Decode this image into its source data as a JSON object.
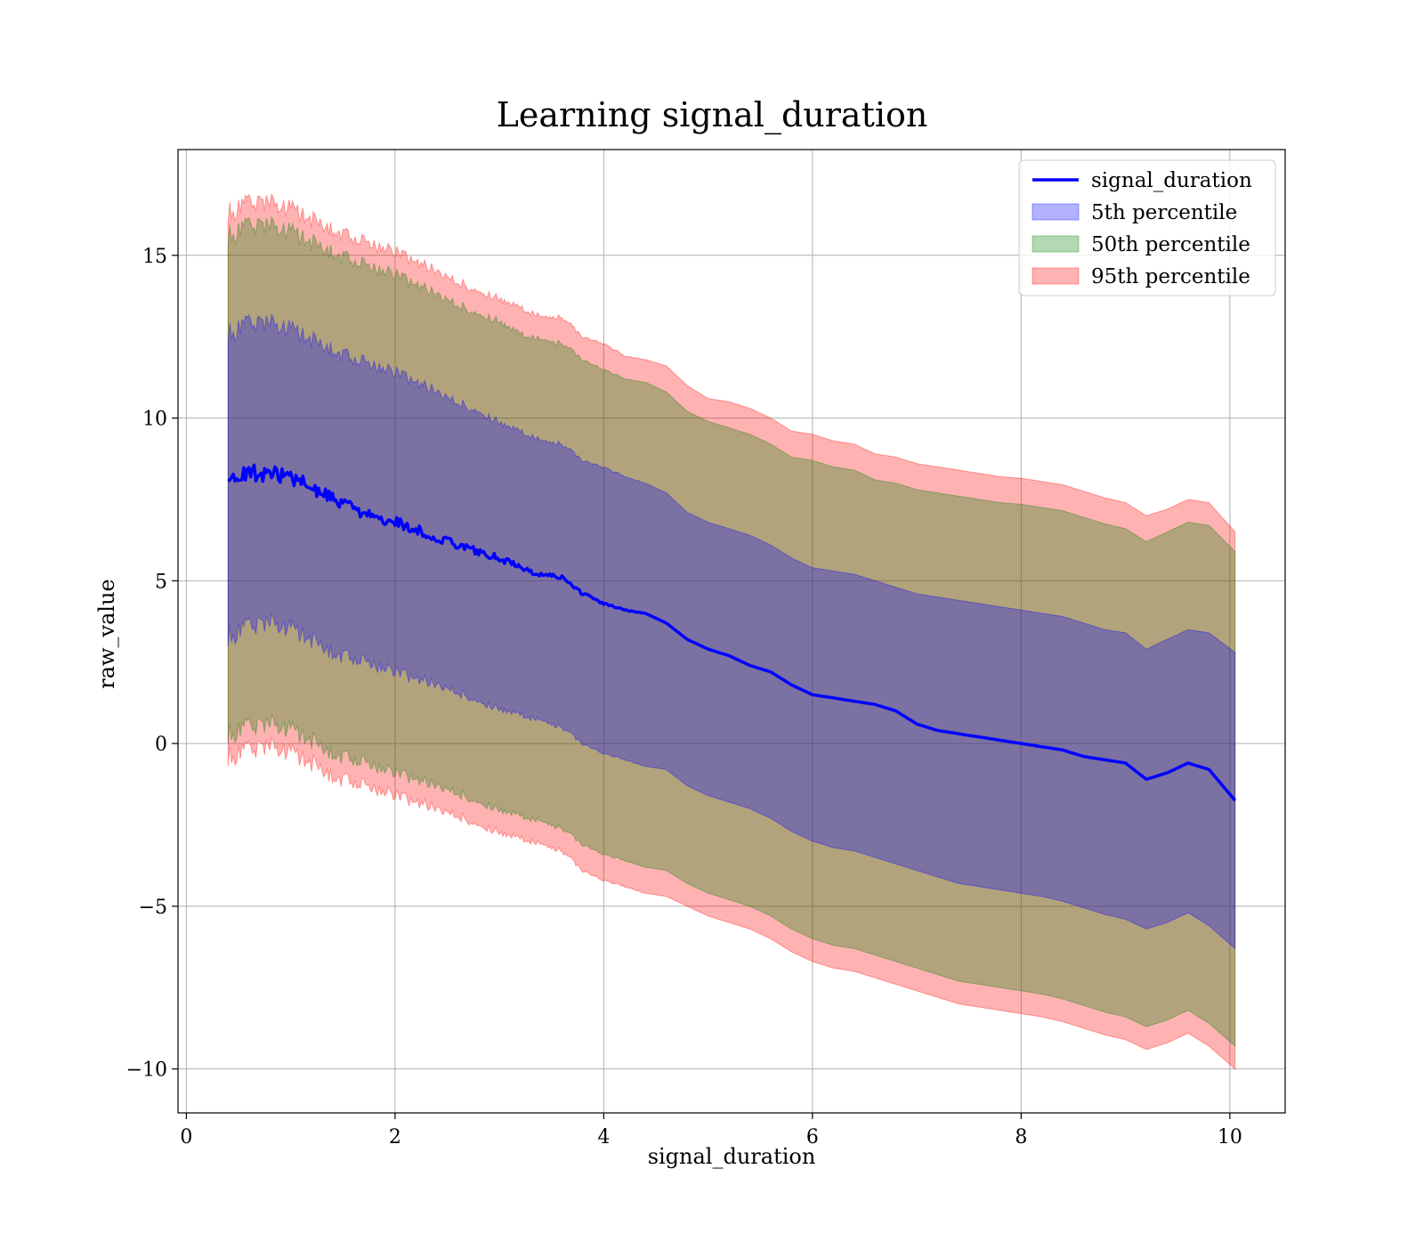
{
  "chart_data": {
    "type": "area",
    "title": "Learning signal_duration",
    "xlabel": "signal_duration",
    "ylabel": "raw_value",
    "xlim": [
      -0.08,
      10.53
    ],
    "ylim": [
      -11.35,
      18.25
    ],
    "xticks": [
      0,
      2,
      4,
      6,
      8,
      10
    ],
    "xtick_labels": [
      "0",
      "2",
      "4",
      "6",
      "8",
      "10"
    ],
    "yticks": [
      -10,
      -5,
      0,
      5,
      10,
      15
    ],
    "ytick_labels": [
      "−10",
      "−5",
      "0",
      "5",
      "10",
      "15"
    ],
    "grid": true,
    "legend_position": "top-right",
    "x": [
      0.4,
      0.6,
      0.8,
      1.0,
      1.2,
      1.4,
      1.6,
      1.8,
      2.0,
      2.2,
      2.4,
      2.6,
      2.8,
      3.0,
      3.2,
      3.4,
      3.6,
      3.8,
      4.0,
      4.2,
      4.4,
      4.6,
      4.8,
      5.0,
      5.2,
      5.4,
      5.6,
      5.8,
      6.0,
      6.2,
      6.4,
      6.6,
      6.8,
      7.0,
      7.2,
      7.4,
      7.6,
      7.8,
      8.0,
      8.2,
      8.4,
      8.6,
      8.8,
      9.0,
      9.2,
      9.4,
      9.6,
      9.8,
      10.05
    ],
    "line": {
      "name": "signal_duration",
      "color": "#0000ff",
      "values": [
        8.0,
        8.3,
        8.3,
        8.2,
        7.9,
        7.5,
        7.2,
        7.0,
        6.8,
        6.6,
        6.3,
        6.1,
        5.9,
        5.7,
        5.4,
        5.2,
        5.1,
        4.6,
        4.3,
        4.1,
        4.0,
        3.7,
        3.2,
        2.9,
        2.7,
        2.4,
        2.2,
        1.8,
        1.5,
        1.4,
        1.3,
        1.2,
        1.0,
        0.6,
        0.4,
        0.3,
        0.2,
        0.1,
        0.0,
        -0.1,
        -0.2,
        -0.4,
        -0.5,
        -0.6,
        -1.1,
        -0.9,
        -0.6,
        -0.8,
        -1.75
      ]
    },
    "bands": [
      {
        "name": "95th percentile",
        "color": "#ff0000",
        "opacity": 0.3,
        "upper": [
          16.3,
          16.6,
          16.6,
          16.4,
          16.1,
          15.8,
          15.5,
          15.3,
          15.1,
          14.8,
          14.5,
          14.2,
          13.9,
          13.7,
          13.4,
          13.1,
          13.1,
          12.5,
          12.3,
          11.9,
          11.8,
          11.6,
          11.0,
          10.6,
          10.5,
          10.3,
          10.0,
          9.6,
          9.5,
          9.3,
          9.2,
          8.9,
          8.8,
          8.6,
          8.5,
          8.4,
          8.3,
          8.2,
          8.15,
          8.05,
          7.95,
          7.75,
          7.55,
          7.4,
          7.0,
          7.2,
          7.5,
          7.4,
          6.5
        ],
        "lower": [
          -0.4,
          -0.2,
          -0.1,
          -0.3,
          -0.6,
          -1.0,
          -1.2,
          -1.4,
          -1.6,
          -1.8,
          -2.0,
          -2.2,
          -2.5,
          -2.7,
          -2.9,
          -3.1,
          -3.3,
          -3.9,
          -4.2,
          -4.4,
          -4.6,
          -4.7,
          -5.0,
          -5.3,
          -5.5,
          -5.7,
          -6.0,
          -6.4,
          -6.7,
          -6.9,
          -7.0,
          -7.2,
          -7.4,
          -7.6,
          -7.8,
          -8.0,
          -8.1,
          -8.2,
          -8.3,
          -8.4,
          -8.55,
          -8.75,
          -8.95,
          -9.1,
          -9.4,
          -9.2,
          -8.9,
          -9.3,
          -10.0
        ]
      },
      {
        "name": "50th percentile",
        "color": "#008000",
        "opacity": 0.3,
        "upper": [
          15.6,
          15.9,
          15.9,
          15.7,
          15.4,
          15.1,
          14.8,
          14.6,
          14.4,
          14.1,
          13.8,
          13.5,
          13.2,
          13.0,
          12.6,
          12.4,
          12.3,
          11.8,
          11.5,
          11.2,
          11.1,
          10.8,
          10.2,
          9.9,
          9.7,
          9.5,
          9.2,
          8.8,
          8.7,
          8.5,
          8.4,
          8.1,
          8.0,
          7.8,
          7.7,
          7.6,
          7.5,
          7.4,
          7.35,
          7.25,
          7.15,
          6.95,
          6.75,
          6.6,
          6.2,
          6.5,
          6.8,
          6.7,
          5.9
        ],
        "lower": [
          0.3,
          0.5,
          0.6,
          0.4,
          0.1,
          -0.3,
          -0.5,
          -0.7,
          -0.9,
          -1.1,
          -1.3,
          -1.5,
          -1.8,
          -2.0,
          -2.2,
          -2.4,
          -2.6,
          -3.1,
          -3.4,
          -3.6,
          -3.8,
          -3.9,
          -4.3,
          -4.6,
          -4.8,
          -5.0,
          -5.3,
          -5.7,
          -6.0,
          -6.2,
          -6.3,
          -6.5,
          -6.7,
          -6.9,
          -7.1,
          -7.3,
          -7.4,
          -7.5,
          -7.6,
          -7.7,
          -7.85,
          -8.05,
          -8.25,
          -8.4,
          -8.7,
          -8.5,
          -8.2,
          -8.6,
          -9.3
        ]
      },
      {
        "name": "5th percentile",
        "color": "#0000ff",
        "opacity": 0.3,
        "upper": [
          12.6,
          12.9,
          12.9,
          12.7,
          12.4,
          12.1,
          11.8,
          11.6,
          11.4,
          11.1,
          10.8,
          10.5,
          10.2,
          9.9,
          9.6,
          9.3,
          9.2,
          8.7,
          8.5,
          8.2,
          8.0,
          7.7,
          7.1,
          6.8,
          6.6,
          6.4,
          6.1,
          5.7,
          5.4,
          5.3,
          5.2,
          5.0,
          4.8,
          4.6,
          4.5,
          4.4,
          4.3,
          4.2,
          4.1,
          4.0,
          3.9,
          3.7,
          3.5,
          3.4,
          2.9,
          3.2,
          3.5,
          3.4,
          2.8
        ],
        "lower": [
          3.3,
          3.6,
          3.7,
          3.5,
          3.2,
          2.8,
          2.6,
          2.4,
          2.2,
          2.0,
          1.8,
          1.6,
          1.3,
          1.1,
          0.9,
          0.7,
          0.5,
          0.0,
          -0.3,
          -0.5,
          -0.7,
          -0.8,
          -1.3,
          -1.6,
          -1.8,
          -2.0,
          -2.3,
          -2.7,
          -3.0,
          -3.2,
          -3.3,
          -3.5,
          -3.7,
          -3.9,
          -4.1,
          -4.3,
          -4.4,
          -4.5,
          -4.6,
          -4.7,
          -4.85,
          -5.05,
          -5.25,
          -5.4,
          -5.7,
          -5.5,
          -5.2,
          -5.6,
          -6.3
        ]
      }
    ],
    "legend": [
      {
        "label": "signal_duration",
        "kind": "line",
        "color": "#0000ff"
      },
      {
        "label": "5th percentile",
        "kind": "patch",
        "color": "#0000ff"
      },
      {
        "label": "50th percentile",
        "kind": "patch",
        "color": "#008000"
      },
      {
        "label": "95th percentile",
        "kind": "patch",
        "color": "#ff0000"
      }
    ]
  }
}
